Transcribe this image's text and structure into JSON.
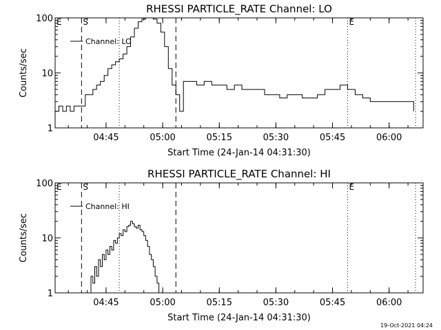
{
  "footer_text": "19-Oct-2021 04:24",
  "chart_data": [
    {
      "type": "line",
      "title": "RHESSI PARTICLE_RATE Channel: LO",
      "xlabel": "Start Time (24-Jan-14 04:31:30)",
      "ylabel": "Counts/sec",
      "yscale": "log",
      "xlim": [
        "04:31:30",
        "06:09:00"
      ],
      "ylim": [
        1,
        100
      ],
      "x_ticks": [
        "04:45",
        "05:00",
        "05:15",
        "05:30",
        "05:45",
        "06:00"
      ],
      "y_ticks": [
        "1",
        "10",
        "100"
      ],
      "legend": {
        "position": "top-left",
        "entries": [
          "Channel: LO"
        ]
      },
      "markers": [
        {
          "label": "E",
          "time": "04:31:30",
          "style": "none"
        },
        {
          "label": "S",
          "time": "04:38:30",
          "style": "dashed"
        },
        {
          "label": "",
          "time": "04:48:30",
          "style": "dotted"
        },
        {
          "label": "",
          "time": "05:03:30",
          "style": "dashed"
        },
        {
          "label": "E",
          "time": "05:49:00",
          "style": "dotted"
        },
        {
          "label": "",
          "time": "06:07:00",
          "style": "dotted"
        }
      ],
      "series": [
        {
          "name": "Channel: LO",
          "x": [
            "04:31:30",
            "04:32:30",
            "04:33:30",
            "04:34:30",
            "04:35:30",
            "04:36:30",
            "04:37:30",
            "04:38:30",
            "04:39:30",
            "04:40:30",
            "04:41:30",
            "04:42:30",
            "04:43:30",
            "04:44:30",
            "04:45:30",
            "04:46:30",
            "04:47:30",
            "04:48:30",
            "04:49:30",
            "04:50:30",
            "04:51:30",
            "04:52:30",
            "04:53:30",
            "04:54:30",
            "04:55:30",
            "04:56:30",
            "04:57:30",
            "04:58:30",
            "04:59:30",
            "05:00:30",
            "05:01:30",
            "05:02:30",
            "05:03:30",
            "05:04:30",
            "05:05:30",
            "05:07:00",
            "05:09:00",
            "05:11:00",
            "05:13:00",
            "05:15:00",
            "05:17:00",
            "05:19:00",
            "05:21:00",
            "05:23:00",
            "05:25:00",
            "05:27:00",
            "05:29:00",
            "05:31:00",
            "05:33:00",
            "05:35:00",
            "05:37:00",
            "05:39:00",
            "05:41:00",
            "05:43:00",
            "05:45:00",
            "05:47:00",
            "05:49:00",
            "05:51:00",
            "05:53:00",
            "05:55:00",
            "05:57:00",
            "05:59:00",
            "06:01:00",
            "06:03:00",
            "06:05:00",
            "06:06:30"
          ],
          "y": [
            2,
            2.5,
            2,
            2.5,
            2,
            2.5,
            2.5,
            2.5,
            4,
            4,
            5,
            6,
            7,
            9,
            12,
            14,
            16,
            18,
            22,
            30,
            45,
            65,
            85,
            95,
            100,
            100,
            95,
            80,
            55,
            30,
            12,
            6,
            4,
            2,
            7,
            7,
            6,
            7,
            6,
            6,
            5,
            6,
            5,
            5,
            5,
            4,
            4,
            3.5,
            4,
            4,
            3.5,
            3.5,
            4,
            5,
            5,
            6,
            5,
            4,
            3.5,
            3,
            3,
            3,
            3,
            3,
            3,
            2
          ]
        }
      ]
    },
    {
      "type": "line",
      "title": "RHESSI PARTICLE_RATE Channel: HI",
      "xlabel": "Start Time (24-Jan-14 04:31:30)",
      "ylabel": "Counts/sec",
      "yscale": "log",
      "xlim": [
        "04:31:30",
        "06:09:00"
      ],
      "ylim": [
        1,
        100
      ],
      "x_ticks": [
        "04:45",
        "05:00",
        "05:15",
        "05:30",
        "05:45",
        "06:00"
      ],
      "y_ticks": [
        "1",
        "10",
        "100"
      ],
      "legend": {
        "position": "top-left",
        "entries": [
          "Channel: HI"
        ]
      },
      "markers": [
        {
          "label": "E",
          "time": "04:31:30",
          "style": "none"
        },
        {
          "label": "S",
          "time": "04:38:30",
          "style": "dashed"
        },
        {
          "label": "",
          "time": "04:48:30",
          "style": "dotted"
        },
        {
          "label": "",
          "time": "05:03:30",
          "style": "dashed"
        },
        {
          "label": "E",
          "time": "05:49:00",
          "style": "dotted"
        },
        {
          "label": "",
          "time": "06:07:00",
          "style": "dotted"
        }
      ],
      "series": [
        {
          "name": "Channel: HI",
          "x": [
            "04:40:30",
            "04:41:00",
            "04:41:30",
            "04:42:00",
            "04:42:30",
            "04:43:00",
            "04:43:30",
            "04:44:00",
            "04:44:30",
            "04:45:00",
            "04:45:30",
            "04:46:00",
            "04:46:30",
            "04:47:00",
            "04:47:30",
            "04:48:00",
            "04:48:30",
            "04:49:00",
            "04:49:30",
            "04:50:00",
            "04:50:30",
            "04:51:00",
            "04:51:30",
            "04:52:00",
            "04:52:30",
            "04:53:00",
            "04:53:30",
            "04:54:00",
            "04:54:30",
            "04:55:00",
            "04:55:30",
            "04:56:00",
            "04:56:30",
            "04:57:00",
            "04:57:30",
            "04:58:00",
            "04:58:30",
            "04:59:00"
          ],
          "y": [
            1,
            2,
            1.5,
            3,
            2,
            4,
            3,
            5,
            4,
            6,
            5,
            7,
            6,
            9,
            8,
            10,
            12,
            11,
            14,
            13,
            16,
            17,
            20,
            18,
            16,
            15,
            17,
            14,
            13,
            11,
            9,
            7,
            5,
            4,
            3,
            2,
            1.5,
            1
          ]
        }
      ]
    }
  ]
}
